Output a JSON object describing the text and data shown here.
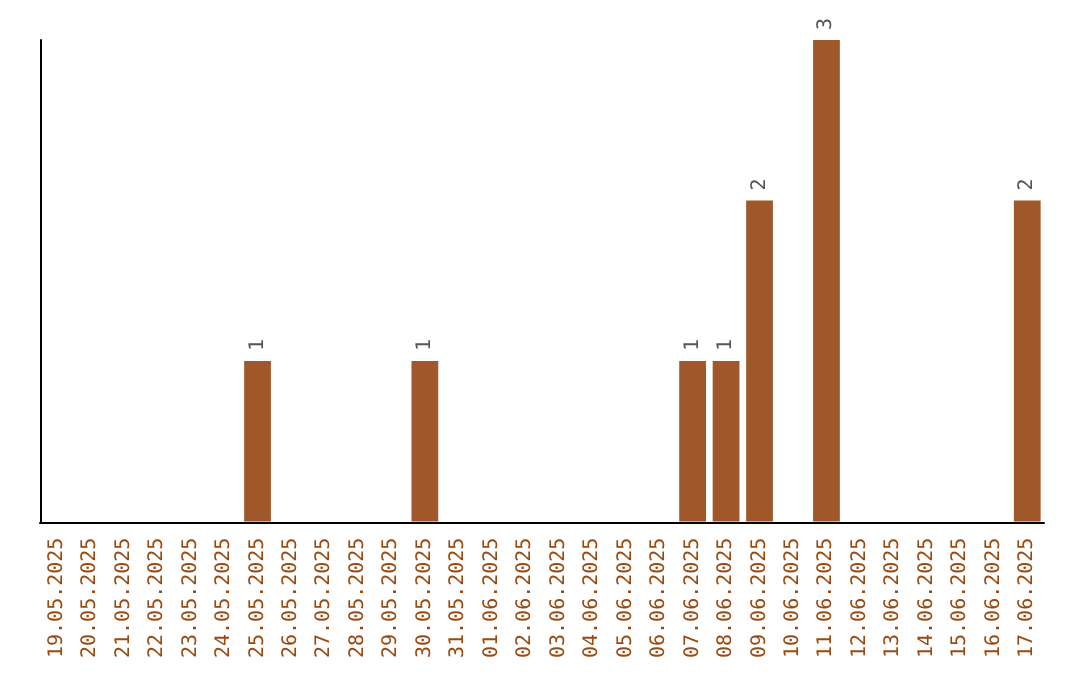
{
  "chart_data": {
    "type": "bar",
    "categories": [
      "19.05.2025",
      "20.05.2025",
      "21.05.2025",
      "22.05.2025",
      "23.05.2025",
      "24.05.2025",
      "25.05.2025",
      "26.05.2025",
      "27.05.2025",
      "28.05.2025",
      "29.05.2025",
      "30.05.2025",
      "31.05.2025",
      "01.06.2025",
      "02.06.2025",
      "03.06.2025",
      "04.06.2025",
      "05.06.2025",
      "06.06.2025",
      "07.06.2025",
      "08.06.2025",
      "09.06.2025",
      "10.06.2025",
      "11.06.2025",
      "12.06.2025",
      "13.06.2025",
      "14.06.2025",
      "15.06.2025",
      "16.06.2025",
      "17.06.2025"
    ],
    "values": [
      0,
      0,
      0,
      0,
      0,
      0,
      1,
      0,
      0,
      0,
      0,
      1,
      0,
      0,
      0,
      0,
      0,
      0,
      0,
      1,
      1,
      2,
      0,
      3,
      0,
      0,
      0,
      0,
      0,
      2
    ],
    "value_labels": [
      null,
      null,
      null,
      null,
      null,
      null,
      "1",
      null,
      null,
      null,
      null,
      "1",
      null,
      null,
      null,
      null,
      null,
      null,
      null,
      "1",
      "1",
      "2",
      null,
      "3",
      null,
      null,
      null,
      null,
      null,
      "2"
    ],
    "color": "#a0582a",
    "tick_labels": "x"
  }
}
